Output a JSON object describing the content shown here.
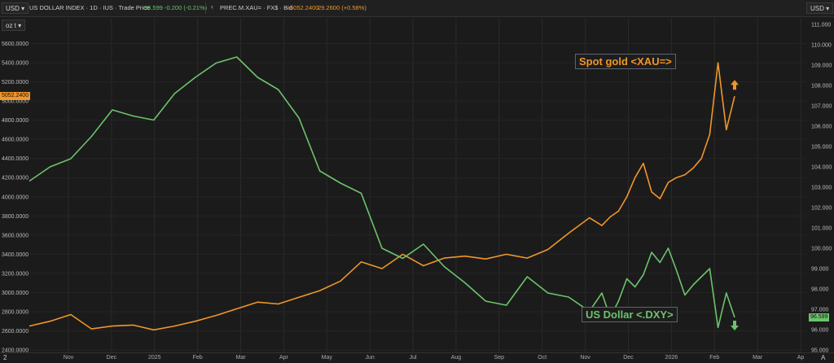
{
  "toolbar": {
    "left_unit": "USD",
    "left_unit2": "oz t",
    "right_unit": "USD",
    "dxy_title": "US DOLLAR INDEX · 1D · IUS · Trade Price",
    "dxy_value": "96.599",
    "dxy_change": "-0.200 (-0.21%)",
    "xau_title": "PREC.M.XAU= · FX$ · Bid",
    "xau_value": "5052.2400",
    "xau_change": "29.2600 (+0.58%)",
    "bottom_left": "2",
    "bottom_right": "A"
  },
  "labels": {
    "gold": "Spot gold <XAU=>",
    "dollar": "US Dollar <.DXY>",
    "gold_last": "5052.2400",
    "dxy_last": "96.599"
  },
  "colors": {
    "gold": "#f0962a",
    "dollar": "#6cc36b",
    "bg": "#1b1b1b"
  },
  "chart_data": {
    "type": "line",
    "x_ticks": [
      "Nov",
      "Dec",
      "2025",
      "Feb",
      "Mar",
      "Apr",
      "May",
      "Jun",
      "Jul",
      "Aug",
      "Sep",
      "Oct",
      "Nov",
      "Dec",
      "2026",
      "Feb",
      "Mar",
      "Ap"
    ],
    "left_axis": {
      "unit": "USD oz t",
      "ylim": [
        2400,
        5800
      ],
      "ticks": [
        "5600.0000",
        "5400.0000",
        "5200.0000",
        "5000.0000",
        "4800.0000",
        "4600.0000",
        "4400.0000",
        "4200.0000",
        "4000.0000",
        "3800.0000",
        "3600.0000",
        "3400.0000",
        "3200.0000",
        "3000.0000",
        "2800.0000",
        "2600.0000",
        "2400.0000"
      ]
    },
    "right_axis": {
      "unit": "USD",
      "ylim": [
        95.0,
        111.0
      ],
      "ticks": [
        "111.000",
        "110.000",
        "109.000",
        "108.000",
        "107.000",
        "106.000",
        "105.000",
        "104.000",
        "103.000",
        "102.000",
        "101.000",
        "100.000",
        "99.000",
        "98.000",
        "97.000",
        "96.000",
        "95.000"
      ]
    },
    "series": [
      {
        "name": "Spot gold <XAU=>",
        "axis": "left",
        "x": [
          0,
          0.5,
          1,
          1.5,
          2,
          2.5,
          3,
          3.5,
          4,
          4.5,
          5,
          5.5,
          6,
          6.5,
          7,
          7.5,
          8,
          8.5,
          9,
          9.5,
          10,
          10.5,
          11,
          11.5,
          12,
          12.5,
          13,
          13.5,
          13.8,
          14,
          14.2,
          14.4,
          14.6,
          14.8,
          15,
          15.2,
          15.4,
          15.6,
          15.8,
          16,
          16.2,
          16.4,
          16.6,
          16.8,
          17
        ],
        "values": [
          2650,
          2700,
          2770,
          2620,
          2650,
          2660,
          2610,
          2650,
          2700,
          2760,
          2830,
          2900,
          2880,
          2950,
          3020,
          3120,
          3320,
          3250,
          3400,
          3280,
          3360,
          3380,
          3350,
          3400,
          3360,
          3450,
          3620,
          3780,
          3700,
          3790,
          3850,
          4000,
          4200,
          4350,
          4050,
          3980,
          4150,
          4200,
          4230,
          4300,
          4400,
          4650,
          5400,
          4700,
          5050
        ]
      },
      {
        "name": "US Dollar <.DXY>",
        "axis": "right",
        "x": [
          0,
          0.5,
          1,
          1.5,
          2,
          2.5,
          3,
          3.5,
          4,
          4.5,
          5,
          5.5,
          6,
          6.5,
          7,
          7.5,
          8,
          8.5,
          9,
          9.5,
          10,
          10.5,
          11,
          11.5,
          12,
          12.5,
          13,
          13.5,
          13.8,
          14,
          14.2,
          14.4,
          14.6,
          14.8,
          15,
          15.2,
          15.4,
          15.6,
          15.8,
          16,
          16.2,
          16.4,
          16.6,
          16.8,
          17
        ],
        "values": [
          103.3,
          104.0,
          104.4,
          105.5,
          106.8,
          106.5,
          106.3,
          107.6,
          108.4,
          109.1,
          109.4,
          108.4,
          107.8,
          106.4,
          103.8,
          103.2,
          102.7,
          100.0,
          99.5,
          100.2,
          99.1,
          98.3,
          97.4,
          97.2,
          98.6,
          97.8,
          97.6,
          96.9,
          97.8,
          96.6,
          97.4,
          98.5,
          98.1,
          98.7,
          99.8,
          99.3,
          100.0,
          98.9,
          97.7,
          98.2,
          98.6,
          99.0,
          96.1,
          97.8,
          96.6
        ]
      }
    ]
  }
}
